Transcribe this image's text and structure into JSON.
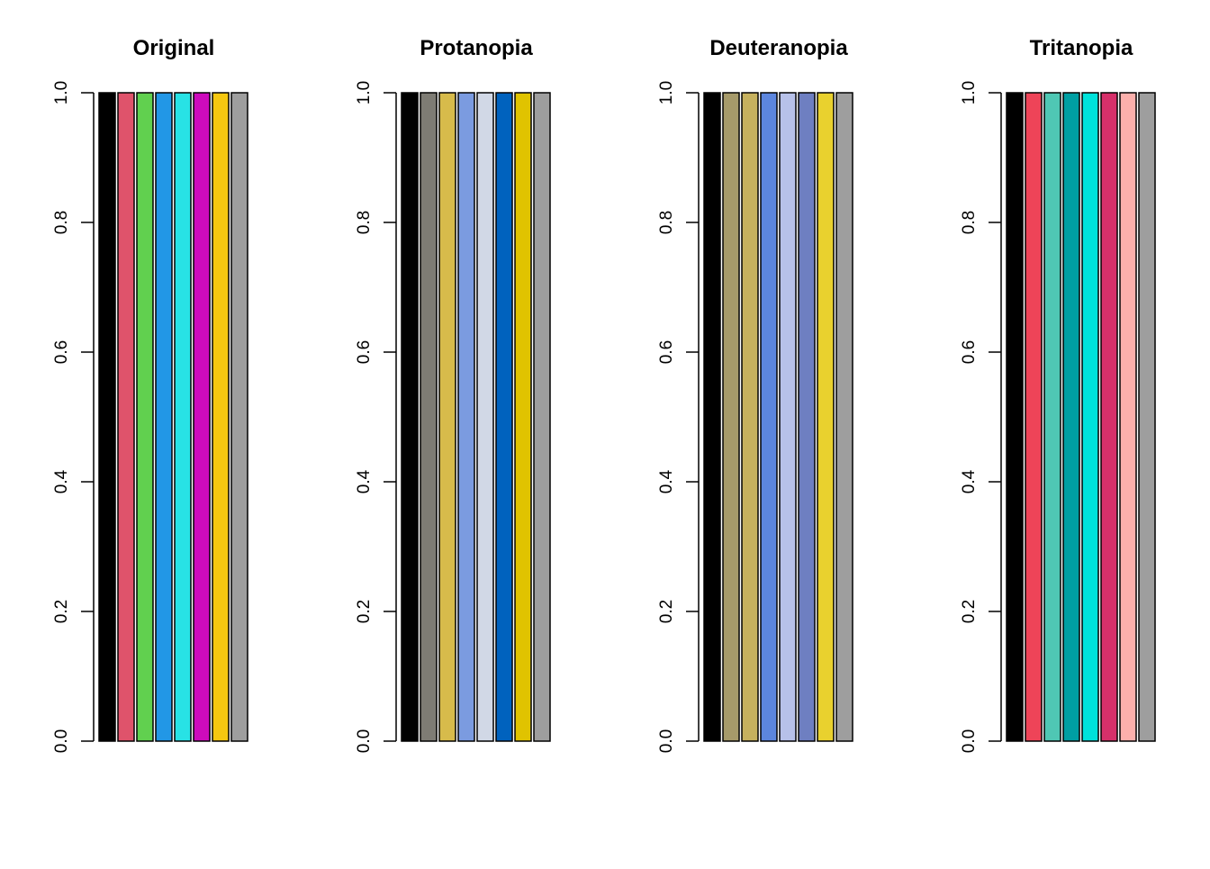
{
  "chart_data": [
    {
      "type": "bar",
      "title": "Original",
      "values": [
        1,
        1,
        1,
        1,
        1,
        1,
        1,
        1
      ],
      "colors": [
        "#000000",
        "#DF536B",
        "#61D04F",
        "#2297E6",
        "#28E2E5",
        "#CD0BBC",
        "#F5C710",
        "#9E9E9E"
      ],
      "ylim": [
        0,
        1
      ],
      "yticks": [
        "0.0",
        "0.2",
        "0.4",
        "0.6",
        "0.8",
        "1.0"
      ],
      "xlabel": "",
      "ylabel": ""
    },
    {
      "type": "bar",
      "title": "Protanopia",
      "values": [
        1,
        1,
        1,
        1,
        1,
        1,
        1,
        1
      ],
      "colors": [
        "#000000",
        "#7E7C74",
        "#D7BB4B",
        "#7B9BE0",
        "#D1D8E6",
        "#0062BE",
        "#E0C300",
        "#9E9E9E"
      ],
      "ylim": [
        0,
        1
      ],
      "yticks": [
        "0.0",
        "0.2",
        "0.4",
        "0.6",
        "0.8",
        "1.0"
      ],
      "xlabel": "",
      "ylabel": ""
    },
    {
      "type": "bar",
      "title": "Deuteranopia",
      "values": [
        1,
        1,
        1,
        1,
        1,
        1,
        1,
        1
      ],
      "colors": [
        "#000000",
        "#A69A6A",
        "#C6B15E",
        "#5C86DE",
        "#B7C1E9",
        "#6E7FC1",
        "#E9D12E",
        "#9E9E9E"
      ],
      "ylim": [
        0,
        1
      ],
      "yticks": [
        "0.0",
        "0.2",
        "0.4",
        "0.6",
        "0.8",
        "1.0"
      ],
      "xlabel": "",
      "ylabel": ""
    },
    {
      "type": "bar",
      "title": "Tritanopia",
      "values": [
        1,
        1,
        1,
        1,
        1,
        1,
        1,
        1
      ],
      "colors": [
        "#000000",
        "#EE4458",
        "#4FC7B4",
        "#009FA3",
        "#00E2DB",
        "#D6306A",
        "#FCB0AC",
        "#9E9E9E"
      ],
      "ylim": [
        0,
        1
      ],
      "yticks": [
        "0.0",
        "0.2",
        "0.4",
        "0.6",
        "0.8",
        "1.0"
      ],
      "xlabel": "",
      "ylabel": ""
    }
  ]
}
